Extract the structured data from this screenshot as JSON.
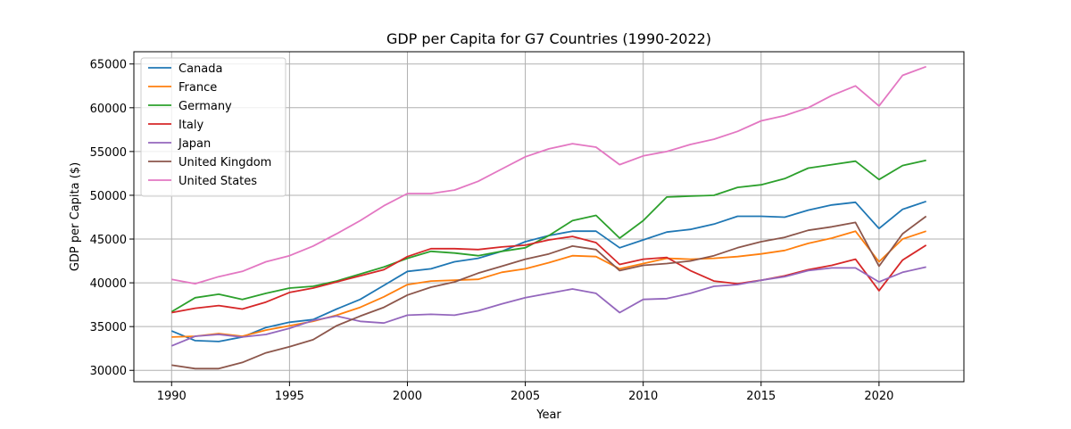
{
  "chart_data": {
    "type": "line",
    "title": "GDP per Capita for G7 Countries (1990-2022)",
    "xlabel": "Year",
    "ylabel": "GDP per Capita ($)",
    "xlim": [
      1988.4,
      2023.6
    ],
    "ylim": [
      28700,
      66400
    ],
    "xticks": [
      1990,
      1995,
      2000,
      2005,
      2010,
      2015,
      2020
    ],
    "yticks": [
      30000,
      35000,
      40000,
      45000,
      50000,
      55000,
      60000,
      65000
    ],
    "grid": true,
    "legend_position": "upper-left",
    "x": [
      1990,
      1991,
      1992,
      1993,
      1994,
      1995,
      1996,
      1997,
      1998,
      1999,
      2000,
      2001,
      2002,
      2003,
      2004,
      2005,
      2006,
      2007,
      2008,
      2009,
      2010,
      2011,
      2012,
      2013,
      2014,
      2015,
      2016,
      2017,
      2018,
      2019,
      2020,
      2021,
      2022
    ],
    "series": [
      {
        "name": "Canada",
        "color": "#1f77b4",
        "values": [
          34500,
          33400,
          33300,
          33800,
          34900,
          35500,
          35800,
          37000,
          38100,
          39700,
          41300,
          41600,
          42400,
          42800,
          43600,
          44700,
          45400,
          45900,
          45900,
          44000,
          44900,
          45800,
          46100,
          46700,
          47600,
          47600,
          47500,
          48300,
          48900,
          49200,
          46200,
          48400,
          49300
        ]
      },
      {
        "name": "France",
        "color": "#ff7f0e",
        "values": [
          33800,
          33900,
          34200,
          33900,
          34600,
          35100,
          35600,
          36300,
          37200,
          38400,
          39800,
          40200,
          40300,
          40400,
          41200,
          41600,
          42300,
          43100,
          43000,
          41600,
          42200,
          42800,
          42700,
          42800,
          43000,
          43300,
          43700,
          44500,
          45100,
          45900,
          42400,
          45000,
          45900
        ]
      },
      {
        "name": "Germany",
        "color": "#2ca02c",
        "values": [
          36700,
          38300,
          38700,
          38100,
          38800,
          39400,
          39600,
          40200,
          41000,
          41800,
          42800,
          43600,
          43400,
          43100,
          43600,
          44000,
          45400,
          47100,
          47700,
          45100,
          47100,
          49800,
          49900,
          50000,
          50900,
          51200,
          51900,
          53100,
          53500,
          53900,
          51800,
          53400,
          54000
        ]
      },
      {
        "name": "Italy",
        "color": "#d62728",
        "values": [
          36600,
          37100,
          37400,
          37000,
          37800,
          38900,
          39400,
          40100,
          40800,
          41500,
          43000,
          43900,
          43900,
          43800,
          44100,
          44300,
          44900,
          45300,
          44600,
          42100,
          42700,
          42900,
          41400,
          40200,
          39900,
          40300,
          40800,
          41500,
          42000,
          42700,
          39100,
          42600,
          44300
        ]
      },
      {
        "name": "Japan",
        "color": "#9467bd",
        "values": [
          32800,
          33900,
          34100,
          33800,
          34100,
          34800,
          35700,
          36200,
          35600,
          35400,
          36300,
          36400,
          36300,
          36800,
          37600,
          38300,
          38800,
          39300,
          38800,
          36600,
          38100,
          38200,
          38800,
          39600,
          39800,
          40300,
          40700,
          41400,
          41700,
          41700,
          40100,
          41200,
          41800
        ]
      },
      {
        "name": "United Kingdom",
        "color": "#8c564b",
        "values": [
          30600,
          30200,
          30200,
          30900,
          32000,
          32700,
          33500,
          35100,
          36200,
          37200,
          38600,
          39500,
          40100,
          41100,
          41900,
          42700,
          43300,
          44200,
          43800,
          41400,
          42000,
          42200,
          42500,
          43100,
          44000,
          44700,
          45200,
          46000,
          46400,
          46900,
          41900,
          45600,
          47600
        ]
      },
      {
        "name": "United States",
        "color": "#e377c2",
        "values": [
          40400,
          39900,
          40700,
          41300,
          42400,
          43100,
          44200,
          45600,
          47100,
          48800,
          50200,
          50200,
          50600,
          51600,
          53000,
          54400,
          55300,
          55900,
          55500,
          53500,
          54500,
          55000,
          55800,
          56400,
          57300,
          58500,
          59100,
          60000,
          61400,
          62500,
          60200,
          63700,
          64700
        ]
      }
    ]
  }
}
